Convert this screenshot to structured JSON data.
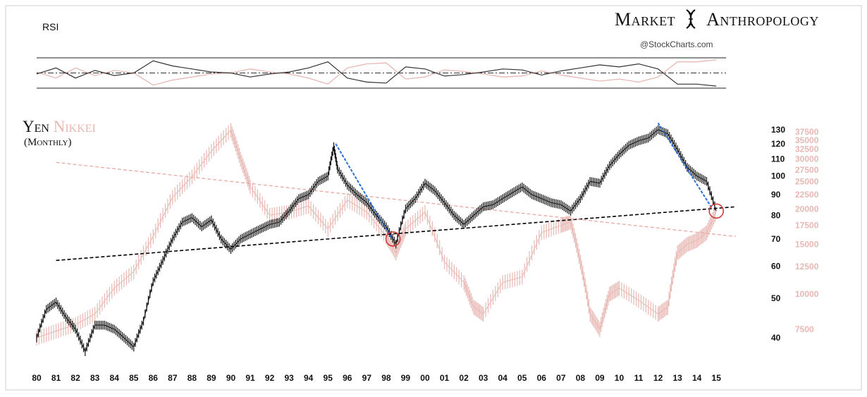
{
  "brand": {
    "left": "Market",
    "right": "Anthropology",
    "logo_icon": "dna-helix-icon"
  },
  "credit": "@StockCharts.com",
  "rsi_panel": {
    "label": "RSI"
  },
  "chart_title": {
    "series_a": "Yen",
    "series_b": "Nikkei",
    "subtitle": "(Monthly)"
  },
  "colors": {
    "yen": "#111111",
    "nikkei": "#e7b8b3",
    "trend": "#2a6fd6",
    "circle": "#d23a3a"
  },
  "chart_data": {
    "type": "line",
    "x_ticks": [
      "80",
      "81",
      "82",
      "83",
      "84",
      "85",
      "86",
      "87",
      "88",
      "89",
      "90",
      "91",
      "92",
      "93",
      "94",
      "95",
      "96",
      "97",
      "98",
      "99",
      "00",
      "01",
      "02",
      "03",
      "04",
      "05",
      "06",
      "07",
      "08",
      "09",
      "10",
      "11",
      "12",
      "13",
      "14",
      "15"
    ],
    "y_left_ticks": [
      "130",
      "120",
      "110",
      "100",
      "90",
      "80",
      "70",
      "60",
      "50",
      "40"
    ],
    "y_right_ticks": [
      "37500",
      "35000",
      "32500",
      "30000",
      "27500",
      "25000",
      "22500",
      "20000",
      "17500",
      "15000",
      "12500",
      "10000",
      "7500"
    ],
    "series": [
      {
        "name": "Yen",
        "axis": "left",
        "x": [
          1980,
          1980.5,
          1981,
          1981.5,
          1982,
          1982.5,
          1983,
          1983.5,
          1984,
          1984.5,
          1985,
          1985.5,
          1986,
          1986.5,
          1987,
          1987.5,
          1988,
          1988.5,
          1989,
          1989.5,
          1990,
          1990.5,
          1991,
          1991.5,
          1992,
          1992.5,
          1993,
          1993.5,
          1994,
          1994.5,
          1995,
          1995.3,
          1995.5,
          1996,
          1996.5,
          1997,
          1997.5,
          1998,
          1998.5,
          1999,
          1999.5,
          2000,
          2000.5,
          2001,
          2001.5,
          2002,
          2002.5,
          2003,
          2003.5,
          2004,
          2004.5,
          2005,
          2005.5,
          2006,
          2006.5,
          2007,
          2007.5,
          2008,
          2008.5,
          2009,
          2009.5,
          2010,
          2010.5,
          2011,
          2011.5,
          2012,
          2012.5,
          2013,
          2013.5,
          2014,
          2014.5,
          2015
        ],
        "values": [
          40,
          47,
          49,
          45,
          42,
          37,
          43,
          43,
          42,
          40,
          38,
          44,
          55,
          62,
          70,
          77,
          79,
          75,
          78,
          70,
          66,
          70,
          72,
          74,
          76,
          77,
          82,
          88,
          90,
          97,
          100,
          118,
          104,
          95,
          90,
          86,
          80,
          75,
          68,
          83,
          88,
          96,
          92,
          86,
          80,
          76,
          80,
          84,
          85,
          88,
          91,
          94,
          90,
          88,
          86,
          85,
          82,
          88,
          97,
          96,
          106,
          113,
          119,
          122,
          124,
          130,
          127,
          116,
          105,
          100,
          97,
          82
        ]
      },
      {
        "name": "Nikkei",
        "axis": "right",
        "x": [
          1980,
          1981,
          1982,
          1983,
          1984,
          1985,
          1986,
          1987,
          1988,
          1989,
          1990,
          1990.5,
          1991,
          1992,
          1993,
          1994,
          1995,
          1996,
          1997,
          1998,
          1998.5,
          1999,
          2000,
          2001,
          2002,
          2002.5,
          2003,
          2004,
          2005,
          2006,
          2007,
          2007.5,
          2008,
          2008.5,
          2009,
          2009.5,
          2010,
          2011,
          2012,
          2012.5,
          2013,
          2013.5,
          2014,
          2014.5,
          2015
        ],
        "values": [
          7000,
          7400,
          7800,
          8500,
          10500,
          12000,
          16000,
          22000,
          26000,
          32000,
          38000,
          30000,
          24000,
          19000,
          19500,
          20500,
          17000,
          21500,
          19500,
          16000,
          14000,
          17000,
          19500,
          13000,
          11000,
          9000,
          8500,
          11000,
          11500,
          16500,
          17500,
          18000,
          13000,
          8500,
          7500,
          10000,
          10500,
          9500,
          8500,
          9000,
          14000,
          15000,
          15500,
          16500,
          19500
        ]
      }
    ],
    "trend_up": {
      "x": [
        1981,
        2016
      ],
      "values": [
        62,
        84
      ]
    },
    "trend_down": {
      "x": [
        1981,
        2016
      ],
      "values": [
        108,
        71
      ]
    },
    "declines": [
      {
        "x": [
          1995.4,
          1998.3
        ],
        "values": [
          120,
          70
        ]
      },
      {
        "x": [
          2012.0,
          2014.8
        ],
        "values": [
          135,
          83
        ]
      }
    ],
    "circles": [
      {
        "x": 1998.35,
        "value": 70
      },
      {
        "x": 2015.0,
        "value": 82
      }
    ],
    "rsi": {
      "x": [
        1980,
        1981,
        1982,
        1983,
        1984,
        1985,
        1986,
        1987,
        1988,
        1989,
        1990,
        1991,
        1992,
        1993,
        1994,
        1995,
        1996,
        1997,
        1998,
        1999,
        2000,
        2001,
        2002,
        2003,
        2004,
        2005,
        2006,
        2007,
        2008,
        2009,
        2010,
        2011,
        2012,
        2013,
        2014,
        2015
      ],
      "values": [
        48,
        60,
        40,
        55,
        45,
        50,
        74,
        64,
        58,
        52,
        50,
        42,
        48,
        52,
        60,
        72,
        40,
        32,
        30,
        62,
        58,
        44,
        47,
        52,
        58,
        56,
        46,
        54,
        60,
        66,
        62,
        68,
        58,
        28,
        28,
        24
      ]
    }
  }
}
